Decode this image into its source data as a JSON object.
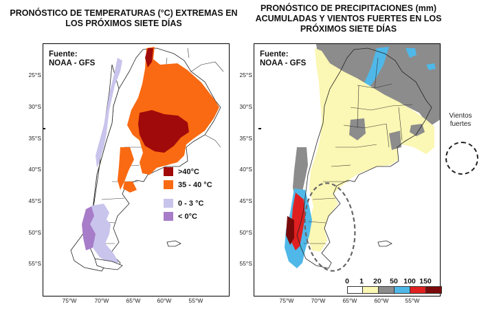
{
  "left_panel": {
    "title_line1": "PRONÓSTICO DE TEMPERATURAS (°C) EXTREMAS EN",
    "title_line2": "LOS PRÓXIMOS SIETE DÍAS",
    "source_line1": "Fuente:",
    "source_line2": "NOAA - GFS",
    "legend": [
      {
        "label": ">40°C",
        "color": "#a10a0a"
      },
      {
        "label": "35 - 40 °C",
        "color": "#f96a12"
      },
      {
        "label": "0 - 3 °C",
        "color": "#c9c4ec"
      },
      {
        "label": "< 0°C",
        "color": "#a77cc9"
      }
    ]
  },
  "right_panel": {
    "title_line1": "PRONÓSTICO DE PRECIPITACIONES (mm)",
    "title_line2": "ACUMULADAS Y VIENTOS FUERTES EN LOS",
    "title_line3": "PRÓXIMOS SIETE DÍAS",
    "source_line1": "Fuente:",
    "source_line2": "NOAA - GFS",
    "scale_labels": [
      "0",
      "1",
      "20",
      "50",
      "100",
      "150"
    ],
    "scale_colors": [
      "#ffffff",
      "#fbf7b4",
      "#8c8c8c",
      "#4fb8e8",
      "#e02020",
      "#7a0a0a"
    ]
  },
  "wind_legend": {
    "label_line1": "Vientos",
    "label_line2": "fuertes"
  },
  "lat_labels": [
    "25°S",
    "30°S",
    "35°S",
    "40°S",
    "45°S",
    "50°S",
    "55°S"
  ],
  "lon_labels": [
    "75°W",
    "70°W",
    "65°W",
    "60°W",
    "55°W"
  ]
}
